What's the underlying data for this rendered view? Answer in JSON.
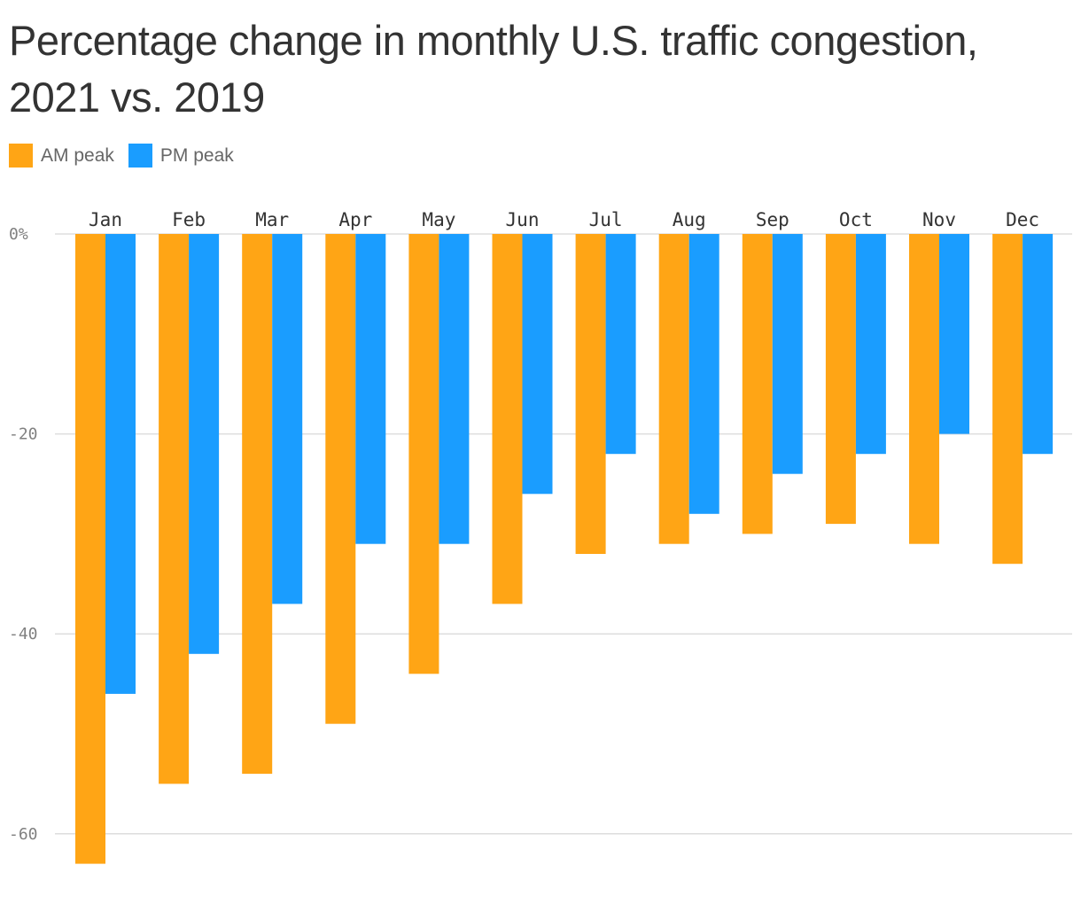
{
  "chart_data": {
    "type": "bar",
    "title": "Percentage change in monthly U.S. traffic congestion, 2021 vs. 2019",
    "xlabel": "",
    "ylabel": "",
    "categories": [
      "Jan",
      "Feb",
      "Mar",
      "Apr",
      "May",
      "Jun",
      "Jul",
      "Aug",
      "Sep",
      "Oct",
      "Nov",
      "Dec"
    ],
    "series": [
      {
        "name": "AM peak",
        "color": "#ffa515",
        "values": [
          -63,
          -55,
          -54,
          -49,
          -44,
          -37,
          -32,
          -31,
          -30,
          -29,
          -31,
          -33
        ]
      },
      {
        "name": "PM peak",
        "color": "#1a9dff",
        "values": [
          -46,
          -42,
          -37,
          -31,
          -31,
          -26,
          -22,
          -28,
          -24,
          -22,
          -20,
          -22
        ]
      }
    ],
    "ylim": [
      -64,
      0
    ],
    "yticks": [
      {
        "value": 0,
        "label": "0%"
      },
      {
        "value": -20,
        "label": "-20"
      },
      {
        "value": -40,
        "label": "-40"
      },
      {
        "value": -60,
        "label": "-60"
      }
    ],
    "grid": true,
    "legend_position": "top-left",
    "category_labels_position": "top"
  }
}
